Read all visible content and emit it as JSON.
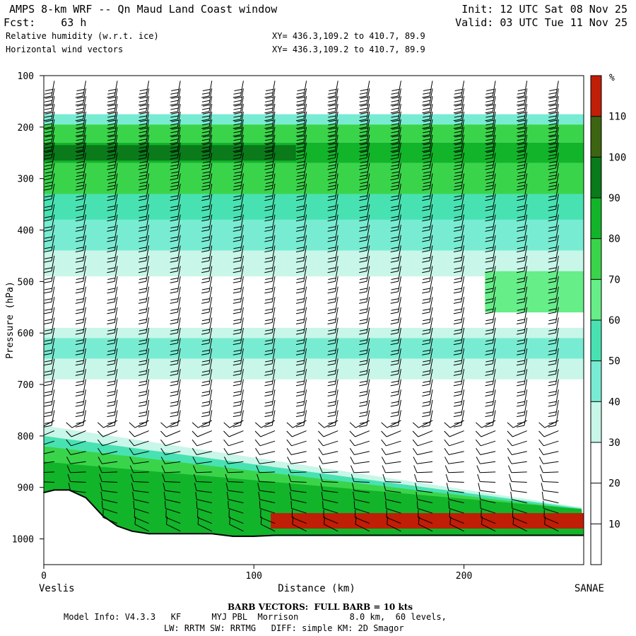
{
  "header": {
    "title": "AMPS 8-km WRF -- Qn Maud Land Coast window",
    "fcst": "Fcst:    63 h",
    "field1": "Relative humidity (w.r.t. ice)",
    "field2": "Horizontal wind vectors",
    "init": "Init: 12 UTC Sat 08 Nov 25",
    "valid": "Valid: 03 UTC Tue 11 Nov 25",
    "xy1": "XY= 436.3,109.2 to 410.7, 89.9",
    "xy2": "XY= 436.3,109.2 to 410.7, 89.9"
  },
  "footer": {
    "barb_note": "BARB VECTORS:  FULL BARB = 10 kts",
    "model_info": "Model Info: V4.3.3   KF      MYJ PBL  Morrison          8.0 km,  60 levels,",
    "physics": "LW: RRTM SW: RRTMG   DIFF: simple KM: 2D Smagor"
  },
  "colors": {
    "rh_levels": [
      "#ffffff",
      "#ffffff",
      "#ffffff",
      "#c8f6e8",
      "#78ecd2",
      "#48e2b2",
      "#66ee88",
      "#3ad44a",
      "#12b42a",
      "#0a7a1a",
      "#3d6410",
      "#c01e06"
    ]
  },
  "chart_data": {
    "type": "cross-section",
    "x_axis": {
      "label": "Distance (km)",
      "ticks": [
        0,
        100,
        200
      ],
      "range": [
        0,
        257
      ],
      "left_endpoint": "Veslis",
      "right_endpoint": "SANAE"
    },
    "y_axis": {
      "label": "Pressure (hPa)",
      "ticks": [
        100,
        200,
        300,
        400,
        500,
        600,
        700,
        800,
        900,
        1000
      ],
      "range": [
        100,
        1050
      ],
      "inverted": true
    },
    "colorbar": {
      "unit": "%",
      "ticks": [
        10,
        20,
        30,
        40,
        50,
        60,
        70,
        80,
        90,
        100,
        110
      ],
      "bounds": [
        0,
        120
      ]
    },
    "rh_bands": [
      {
        "top_hpa": 175,
        "bottom_hpa": 195,
        "rh": 45
      },
      {
        "top_hpa": 195,
        "bottom_hpa": 230,
        "rh": 75
      },
      {
        "top_hpa": 230,
        "bottom_hpa": 270,
        "rh": 85
      },
      {
        "top_hpa": 270,
        "bottom_hpa": 330,
        "rh": 70
      },
      {
        "top_hpa": 330,
        "bottom_hpa": 380,
        "rh": 55
      },
      {
        "top_hpa": 380,
        "bottom_hpa": 440,
        "rh": 45
      },
      {
        "top_hpa": 440,
        "bottom_hpa": 490,
        "rh": 35
      },
      {
        "top_hpa": 590,
        "bottom_hpa": 610,
        "rh": 35
      },
      {
        "top_hpa": 610,
        "bottom_hpa": 650,
        "rh": 45
      },
      {
        "top_hpa": 650,
        "bottom_hpa": 690,
        "rh": 35
      }
    ],
    "rh_patches": [
      {
        "x": [
          0,
          120
        ],
        "top_hpa": 235,
        "bottom_hpa": 265,
        "rh": 95
      },
      {
        "x": [
          210,
          257
        ],
        "top_hpa": 480,
        "bottom_hpa": 560,
        "rh": 65
      },
      {
        "x": [
          108,
          257
        ],
        "top_hpa": 950,
        "bottom_hpa": 980,
        "rh": 115
      }
    ],
    "terrain_hpa": [
      [
        0,
        910
      ],
      [
        5,
        905
      ],
      [
        12,
        905
      ],
      [
        20,
        920
      ],
      [
        28,
        955
      ],
      [
        35,
        975
      ],
      [
        42,
        985
      ],
      [
        50,
        990
      ],
      [
        60,
        990
      ],
      [
        80,
        990
      ],
      [
        90,
        995
      ],
      [
        100,
        995
      ],
      [
        110,
        993
      ],
      [
        130,
        993
      ],
      [
        160,
        993
      ],
      [
        200,
        993
      ],
      [
        257,
        993
      ]
    ],
    "wind_barb_columns_km": [
      5,
      20,
      35,
      50,
      65,
      80,
      95,
      110,
      125,
      140,
      155,
      170,
      185,
      200,
      215,
      230,
      245
    ],
    "wind_barb_levels_hpa": [
      110,
      125,
      140,
      155,
      170,
      185,
      200,
      215,
      230,
      250,
      270,
      290,
      310,
      330,
      350,
      370,
      390,
      410,
      430,
      450,
      470,
      490,
      510,
      530,
      550,
      570,
      590,
      610,
      630,
      650,
      670,
      690,
      710,
      730,
      750,
      770,
      790,
      810,
      830,
      850,
      870,
      890,
      910,
      930,
      950,
      970,
      985
    ]
  }
}
